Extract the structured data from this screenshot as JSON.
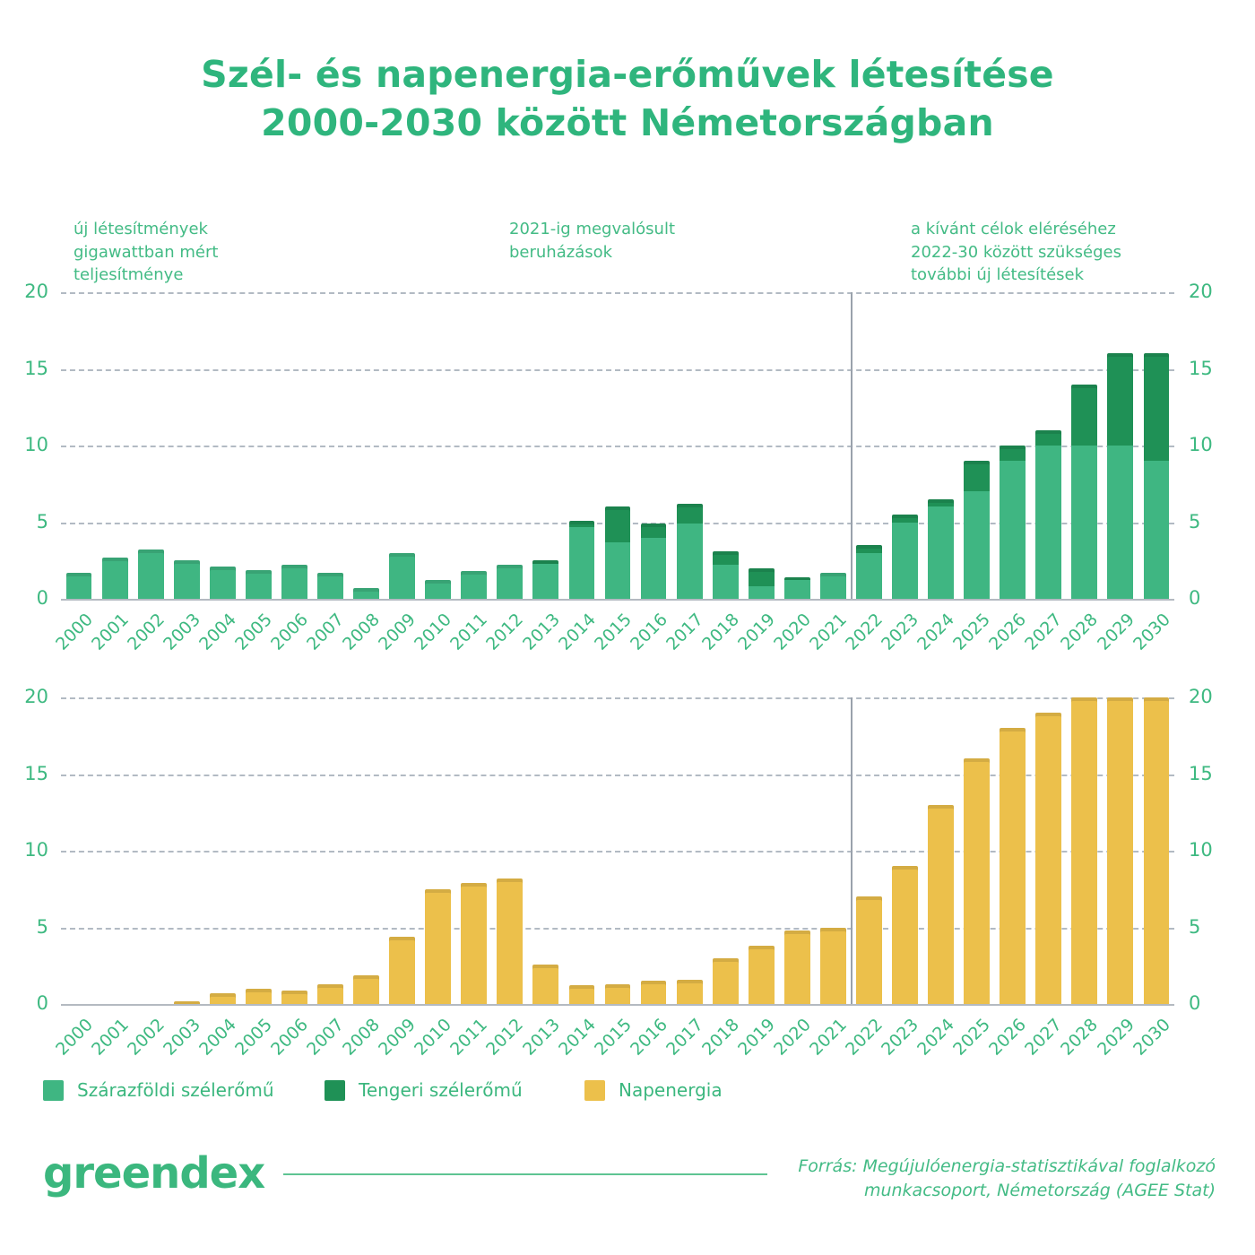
{
  "title": {
    "line1": "Szél- és napenergia-erőművek létesítése",
    "line2": "2000-2030 között Németországban"
  },
  "annotations": {
    "left": "új létesítmények gigawattban mért teljesítménye",
    "middle": "2021-ig megvalósult beruházások",
    "right": "a kívánt célok eléréséhez 2022-30 között szükséges további új létesítések"
  },
  "chart_data": [
    {
      "type": "bar",
      "name": "wind",
      "stacked": true,
      "categories": [
        "2000",
        "2001",
        "2002",
        "2003",
        "2004",
        "2005",
        "2006",
        "2007",
        "2008",
        "2009",
        "2010",
        "2011",
        "2012",
        "2013",
        "2014",
        "2015",
        "2016",
        "2017",
        "2018",
        "2019",
        "2020",
        "2021",
        "2022",
        "2023",
        "2024",
        "2025",
        "2026",
        "2027",
        "2028",
        "2029",
        "2030"
      ],
      "series": [
        {
          "name": "Szárazföldi szélerőmű",
          "color": "#3fb682",
          "values": [
            1.7,
            2.7,
            3.2,
            2.5,
            2.1,
            1.9,
            2.2,
            1.7,
            0.7,
            3.0,
            1.2,
            1.8,
            2.2,
            2.3,
            4.7,
            3.7,
            4.0,
            4.9,
            2.2,
            0.8,
            1.2,
            1.7,
            3.0,
            5.0,
            6.0,
            7.0,
            9.0,
            10.0,
            10.0,
            10.0,
            9.0
          ]
        },
        {
          "name": "Tengeri szélerőmű",
          "color": "#1f9156",
          "values": [
            0,
            0,
            0,
            0,
            0,
            0,
            0,
            0,
            0,
            0,
            0,
            0,
            0,
            0.2,
            0.4,
            2.3,
            0.9,
            1.3,
            0.9,
            1.2,
            0.2,
            0,
            0.5,
            0.5,
            0.5,
            2.0,
            1.0,
            1.0,
            4.0,
            6.0,
            7.0
          ]
        }
      ],
      "ylabel": "",
      "ylim": [
        0,
        20
      ],
      "yticks": [
        0,
        5,
        10,
        15,
        20
      ],
      "grid": "dashed-horizontal",
      "divider_after_index": 21
    },
    {
      "type": "bar",
      "name": "solar",
      "stacked": false,
      "categories": [
        "2000",
        "2001",
        "2002",
        "2003",
        "2004",
        "2005",
        "2006",
        "2007",
        "2008",
        "2009",
        "2010",
        "2011",
        "2012",
        "2013",
        "2014",
        "2015",
        "2016",
        "2017",
        "2018",
        "2019",
        "2020",
        "2021",
        "2022",
        "2023",
        "2024",
        "2025",
        "2026",
        "2027",
        "2028",
        "2029",
        "2030"
      ],
      "series": [
        {
          "name": "Napenergia",
          "color": "#ecc04b",
          "values": [
            0,
            0,
            0,
            0.2,
            0.7,
            1.0,
            0.9,
            1.3,
            1.9,
            4.4,
            7.5,
            7.9,
            8.2,
            2.6,
            1.2,
            1.3,
            1.5,
            1.6,
            3.0,
            3.8,
            4.8,
            5.0,
            7.0,
            9.0,
            13.0,
            16.0,
            18.0,
            19.0,
            20.0,
            20.0,
            20.0
          ]
        }
      ],
      "ylabel": "",
      "ylim": [
        0,
        20
      ],
      "yticks": [
        0,
        5,
        10,
        15,
        20
      ],
      "grid": "dashed-horizontal",
      "divider_after_index": 21
    }
  ],
  "legend": {
    "items": [
      {
        "label": "Szárazföldi szélerőmű",
        "color": "#3fb682"
      },
      {
        "label": "Tengeri szélerőmű",
        "color": "#1f9156"
      },
      {
        "label": "Napenergia",
        "color": "#ecc04b"
      }
    ]
  },
  "footer": {
    "logo": "greendex",
    "source": "Forrás: Megújulóenergia-statisztikával foglalkozó munkacsoport, Németország (AGEE Stat)"
  },
  "colors": {
    "accent_green": "#3bb77e",
    "onshore_wind": "#3fb682",
    "offshore_wind": "#1f9156",
    "solar": "#ecc04b",
    "gridline": "#a0aab5"
  }
}
